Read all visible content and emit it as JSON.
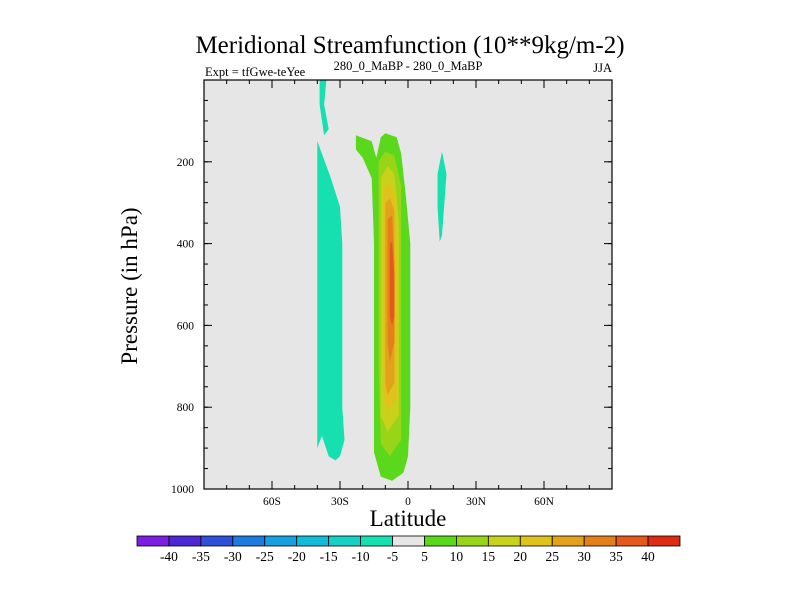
{
  "chart_data": {
    "type": "contour",
    "title": "Meridional Streamfunction (10**9kg/m-2)",
    "subtitle_left": "Expt = tfGwe-teYee",
    "subtitle_center": "280_0_MaBP - 280_0_MaBP",
    "subtitle_right": "JJA",
    "xlabel": "Latitude",
    "ylabel": "Pressure (in hPa)",
    "xlim": [
      -90,
      90
    ],
    "ylim": [
      1000,
      0
    ],
    "x_ticks": [
      {
        "value": -60,
        "label": "60S"
      },
      {
        "value": -30,
        "label": "30S"
      },
      {
        "value": 0,
        "label": "0"
      },
      {
        "value": 30,
        "label": "30N"
      },
      {
        "value": 60,
        "label": "60N"
      }
    ],
    "y_ticks": [
      {
        "value": 200,
        "label": "200"
      },
      {
        "value": 400,
        "label": "400"
      },
      {
        "value": 600,
        "label": "600"
      },
      {
        "value": 800,
        "label": "800"
      },
      {
        "value": 1000,
        "label": "1000"
      }
    ],
    "background_color": "#e6e6e6",
    "contour_levels": [
      -40,
      -35,
      -30,
      -25,
      -20,
      -15,
      -10,
      -5,
      5,
      10,
      15,
      20,
      25,
      30,
      35,
      40
    ],
    "colorbar_colors": [
      "#7b1fe0",
      "#4b28d4",
      "#2f4fd8",
      "#1f7ade",
      "#179fe0",
      "#12bcd8",
      "#13d1c4",
      "#16e0b0",
      "#e6e6e6",
      "#5ad81c",
      "#98d418",
      "#c8d21a",
      "#e0c21c",
      "#e3a21c",
      "#e3801c",
      "#e35a1c",
      "#dd2b14"
    ],
    "regions": [
      {
        "name": "neg-5-upper-sh",
        "color": "#16e0b0",
        "level": "<-5",
        "polygon": [
          [
            -39,
            0
          ],
          [
            -36,
            0
          ],
          [
            -37,
            60
          ],
          [
            -35,
            120
          ],
          [
            -37,
            135
          ],
          [
            -39,
            60
          ]
        ]
      },
      {
        "name": "neg-5-main-sh",
        "color": "#16e0b0",
        "level": "<-5",
        "polygon": [
          [
            -40,
            150
          ],
          [
            -38,
            180
          ],
          [
            -34,
            240
          ],
          [
            -30,
            310
          ],
          [
            -29,
            400
          ],
          [
            -29,
            600
          ],
          [
            -29,
            800
          ],
          [
            -28,
            880
          ],
          [
            -30,
            920
          ],
          [
            -32,
            930
          ],
          [
            -35,
            920
          ],
          [
            -38,
            870
          ],
          [
            -40,
            900
          ],
          [
            -40,
            700
          ],
          [
            -40,
            400
          ],
          [
            -40,
            200
          ]
        ]
      },
      {
        "name": "neg-5-nh",
        "color": "#16e0b0",
        "level": "<-5",
        "polygon": [
          [
            13,
            230
          ],
          [
            15,
            175
          ],
          [
            17,
            230
          ],
          [
            15,
            380
          ],
          [
            14,
            395
          ],
          [
            13,
            310
          ]
        ]
      },
      {
        "name": "pos-5",
        "color": "#5ad81c",
        "level": ">5",
        "polygon": [
          [
            -23,
            135
          ],
          [
            -16,
            150
          ],
          [
            -14,
            190
          ],
          [
            -12,
            140
          ],
          [
            -10,
            130
          ],
          [
            -5,
            140
          ],
          [
            -3,
            180
          ],
          [
            -1,
            280
          ],
          [
            1,
            400
          ],
          [
            1,
            600
          ],
          [
            1,
            800
          ],
          [
            0,
            920
          ],
          [
            -2,
            960
          ],
          [
            -7,
            980
          ],
          [
            -12,
            970
          ],
          [
            -15,
            910
          ],
          [
            -15,
            700
          ],
          [
            -15,
            400
          ],
          [
            -16,
            240
          ],
          [
            -20,
            190
          ],
          [
            -23,
            170
          ]
        ]
      },
      {
        "name": "pos-10",
        "color": "#98d418",
        "level": ">10",
        "polygon": [
          [
            -13,
            200
          ],
          [
            -10,
            175
          ],
          [
            -6,
            185
          ],
          [
            -3,
            260
          ],
          [
            -3,
            400
          ],
          [
            -3,
            700
          ],
          [
            -3,
            880
          ],
          [
            -8,
            920
          ],
          [
            -12,
            890
          ],
          [
            -13,
            700
          ],
          [
            -13,
            400
          ],
          [
            -13,
            260
          ]
        ]
      },
      {
        "name": "pos-15",
        "color": "#c8d21a",
        "level": ">15",
        "polygon": [
          [
            -12,
            240
          ],
          [
            -9,
            210
          ],
          [
            -6,
            230
          ],
          [
            -4,
            350
          ],
          [
            -4,
            600
          ],
          [
            -4,
            820
          ],
          [
            -9,
            860
          ],
          [
            -12,
            820
          ],
          [
            -12,
            600
          ],
          [
            -12,
            350
          ]
        ]
      },
      {
        "name": "pos-20",
        "color": "#e0c21c",
        "level": ">20",
        "polygon": [
          [
            -11,
            270
          ],
          [
            -9,
            250
          ],
          [
            -6,
            275
          ],
          [
            -5,
            380
          ],
          [
            -5,
            600
          ],
          [
            -5,
            780
          ],
          [
            -9,
            810
          ],
          [
            -11,
            780
          ],
          [
            -11,
            600
          ],
          [
            -11,
            380
          ]
        ]
      },
      {
        "name": "pos-25",
        "color": "#e3a21c",
        "level": ">25",
        "polygon": [
          [
            -10,
            300
          ],
          [
            -8,
            290
          ],
          [
            -6,
            320
          ],
          [
            -6,
            420
          ],
          [
            -6,
            600
          ],
          [
            -6,
            740
          ],
          [
            -9,
            770
          ],
          [
            -10,
            740
          ],
          [
            -10,
            600
          ],
          [
            -10,
            420
          ]
        ]
      },
      {
        "name": "pos-30",
        "color": "#e3801c",
        "level": ">30",
        "polygon": [
          [
            -9,
            340
          ],
          [
            -7,
            330
          ],
          [
            -6,
            450
          ],
          [
            -6,
            640
          ],
          [
            -8,
            690
          ],
          [
            -9,
            640
          ],
          [
            -9,
            450
          ]
        ]
      },
      {
        "name": "pos-35",
        "color": "#e35a1c",
        "level": ">35",
        "polygon": [
          [
            -8,
            400
          ],
          [
            -7,
            395
          ],
          [
            -6,
            480
          ],
          [
            -6,
            580
          ],
          [
            -7,
            600
          ],
          [
            -8,
            580
          ],
          [
            -8,
            480
          ]
        ]
      }
    ]
  }
}
